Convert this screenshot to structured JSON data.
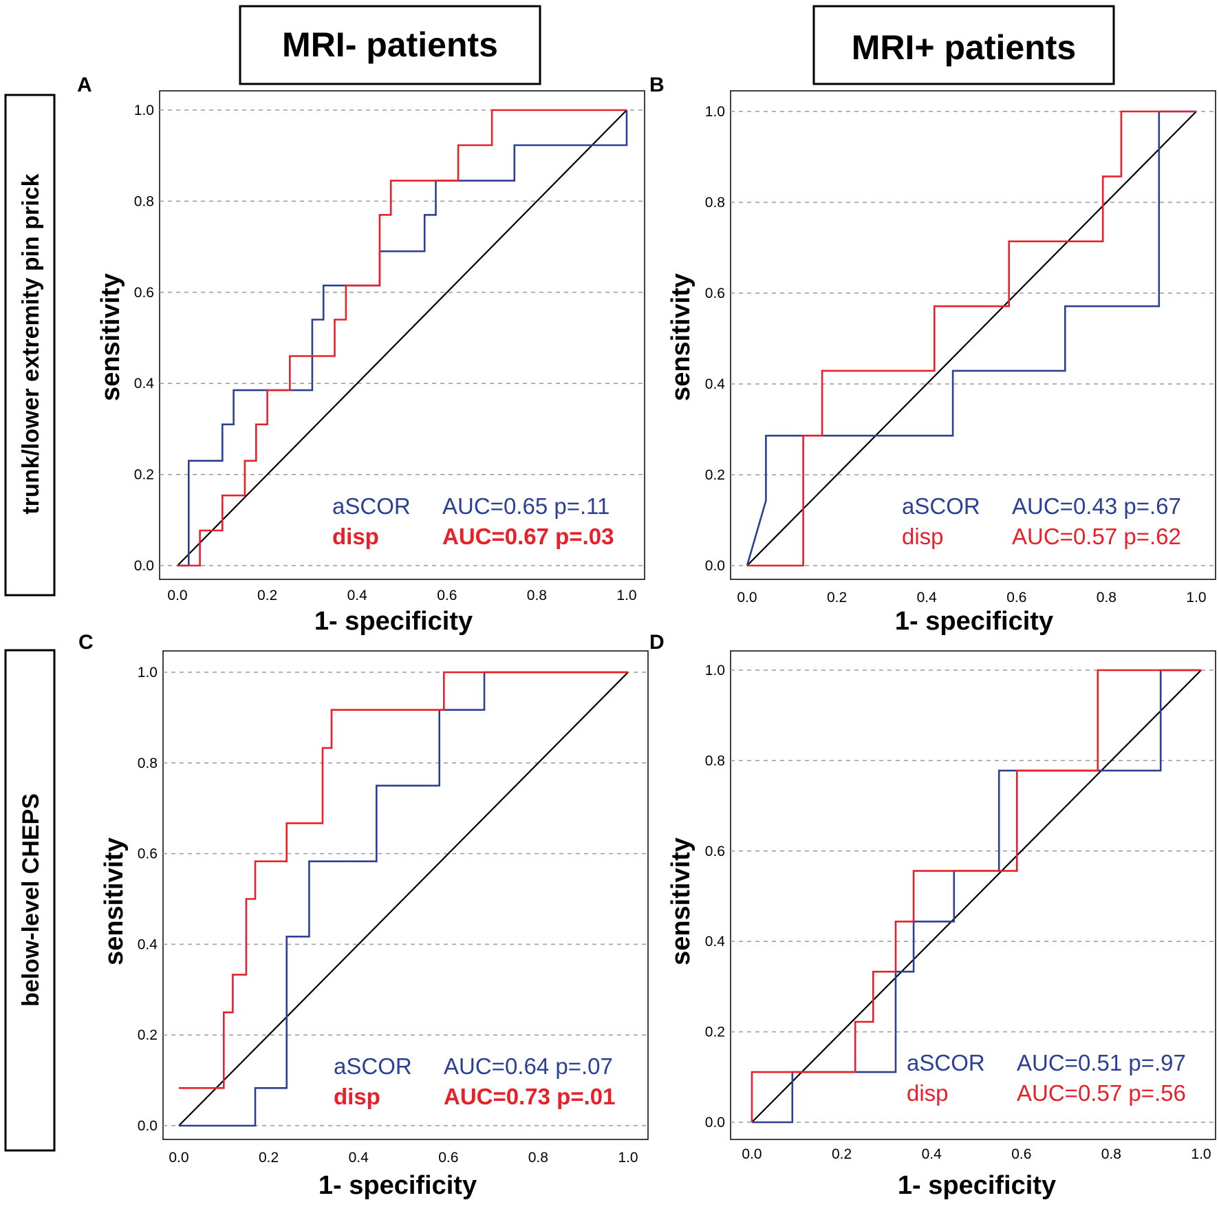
{
  "column_titles": [
    "MRI- patients",
    "MRI+ patients"
  ],
  "row_titles": [
    "trunk/lower extremity pin prick",
    "below-level CHEPS"
  ],
  "colors": {
    "aSCOR": "#2b3f95",
    "disp": "#e8202a",
    "reference": "#000000",
    "grid": "#9a9a9a"
  },
  "chart_data": [
    {
      "panel": "A",
      "type": "line",
      "xlabel": "1- specificity",
      "ylabel": "sensitivity",
      "xlim": [
        0,
        1
      ],
      "ylim": [
        0,
        1
      ],
      "xticks": [
        "0.0",
        "0.2",
        "0.4",
        "0.6",
        "0.8",
        "1.0"
      ],
      "yticks": [
        "0.0",
        "0.2",
        "0.4",
        "0.6",
        "0.8",
        "1.0"
      ],
      "grid": "horizontal dashed",
      "series": [
        {
          "name": "aSCOR",
          "auc_text": "AUC=0.65 p=.11",
          "bold": false,
          "x": [
            0,
            0.025,
            0.025,
            0.1,
            0.1,
            0.125,
            0.125,
            0.3,
            0.3,
            0.325,
            0.325,
            0.45,
            0.45,
            0.55,
            0.55,
            0.575,
            0.575,
            0.75,
            0.75,
            1.0,
            1.0
          ],
          "y": [
            0,
            0,
            0.23,
            0.23,
            0.31,
            0.31,
            0.385,
            0.385,
            0.54,
            0.54,
            0.615,
            0.615,
            0.69,
            0.69,
            0.77,
            0.77,
            0.845,
            0.845,
            0.923,
            0.923,
            1.0
          ]
        },
        {
          "name": "disp",
          "auc_text": "AUC=0.67 p=.03",
          "bold": true,
          "x": [
            0,
            0.05,
            0.05,
            0.1,
            0.1,
            0.15,
            0.15,
            0.175,
            0.175,
            0.2,
            0.2,
            0.25,
            0.25,
            0.35,
            0.35,
            0.375,
            0.375,
            0.45,
            0.45,
            0.475,
            0.475,
            0.625,
            0.625,
            0.7,
            0.7,
            1.0
          ],
          "y": [
            0,
            0,
            0.077,
            0.077,
            0.154,
            0.154,
            0.23,
            0.23,
            0.31,
            0.31,
            0.385,
            0.385,
            0.46,
            0.46,
            0.54,
            0.54,
            0.615,
            0.615,
            0.77,
            0.77,
            0.845,
            0.845,
            0.923,
            0.923,
            1.0,
            1.0
          ]
        }
      ]
    },
    {
      "panel": "B",
      "type": "line",
      "xlabel": "1- specificity",
      "ylabel": "sensitivity",
      "xlim": [
        0,
        1
      ],
      "ylim": [
        0,
        1
      ],
      "xticks": [
        "0.0",
        "0.2",
        "0.4",
        "0.6",
        "0.8",
        "1.0"
      ],
      "yticks": [
        "0.0",
        "0.2",
        "0.4",
        "0.6",
        "0.8",
        "1.0"
      ],
      "grid": "horizontal dashed",
      "series": [
        {
          "name": "aSCOR",
          "auc_text": "AUC=0.43 p=.67",
          "bold": false,
          "x": [
            0,
            0.042,
            0.042,
            0.458,
            0.458,
            0.708,
            0.708,
            0.917,
            0.917,
            1.0
          ],
          "y": [
            0,
            0.143,
            0.286,
            0.286,
            0.429,
            0.429,
            0.571,
            0.571,
            1.0,
            1.0
          ]
        },
        {
          "name": "disp",
          "auc_text": "AUC=0.57 p=.62",
          "bold": false,
          "x": [
            0,
            0.125,
            0.125,
            0.167,
            0.167,
            0.417,
            0.417,
            0.583,
            0.583,
            0.792,
            0.792,
            0.833,
            0.833,
            1.0
          ],
          "y": [
            0,
            0,
            0.286,
            0.286,
            0.429,
            0.429,
            0.571,
            0.571,
            0.714,
            0.714,
            0.857,
            0.857,
            1.0,
            1.0
          ]
        }
      ]
    },
    {
      "panel": "C",
      "type": "line",
      "xlabel": "1- specificity",
      "ylabel": "sensitivity",
      "xlim": [
        0,
        1
      ],
      "ylim": [
        0,
        1
      ],
      "xticks": [
        "0.0",
        "0.2",
        "0.4",
        "0.6",
        "0.8",
        "1.0"
      ],
      "yticks": [
        "0.0",
        "0.2",
        "0.4",
        "0.6",
        "0.8",
        "1.0"
      ],
      "grid": "horizontal dashed",
      "series": [
        {
          "name": "aSCOR",
          "auc_text": "AUC=0.64 p=.07",
          "bold": false,
          "x": [
            0,
            0.17,
            0.17,
            0.24,
            0.24,
            0.29,
            0.29,
            0.44,
            0.44,
            0.58,
            0.58,
            0.68,
            0.68,
            1.0
          ],
          "y": [
            0,
            0,
            0.083,
            0.083,
            0.417,
            0.417,
            0.583,
            0.583,
            0.75,
            0.75,
            0.917,
            0.917,
            1.0,
            1.0
          ]
        },
        {
          "name": "disp",
          "auc_text": "AUC=0.73 p=.01",
          "bold": true,
          "x": [
            0,
            0.1,
            0.1,
            0.12,
            0.12,
            0.15,
            0.15,
            0.17,
            0.17,
            0.24,
            0.24,
            0.32,
            0.32,
            0.34,
            0.34,
            0.59,
            0.59,
            0.88,
            0.88,
            1.0
          ],
          "y": [
            0.083,
            0.083,
            0.25,
            0.25,
            0.333,
            0.333,
            0.5,
            0.5,
            0.583,
            0.583,
            0.667,
            0.667,
            0.833,
            0.833,
            0.917,
            0.917,
            1.0,
            1.0,
            1.0,
            1.0
          ]
        }
      ]
    },
    {
      "panel": "D",
      "type": "line",
      "xlabel": "1- specificity",
      "ylabel": "sensitivity",
      "xlim": [
        0,
        1
      ],
      "ylim": [
        0,
        1
      ],
      "xticks": [
        "0.0",
        "0.2",
        "0.4",
        "0.6",
        "0.8",
        "1.0"
      ],
      "yticks": [
        "0.0",
        "0.2",
        "0.4",
        "0.6",
        "0.8",
        "1.0"
      ],
      "grid": "horizontal dashed",
      "series": [
        {
          "name": "aSCOR",
          "auc_text": "AUC=0.51 p=.97",
          "bold": false,
          "x": [
            0,
            0.09,
            0.09,
            0.32,
            0.32,
            0.36,
            0.36,
            0.45,
            0.45,
            0.55,
            0.55,
            0.59,
            0.59,
            0.91,
            0.91,
            1.0
          ],
          "y": [
            0,
            0,
            0.111,
            0.111,
            0.333,
            0.333,
            0.444,
            0.444,
            0.556,
            0.556,
            0.778,
            0.778,
            0.778,
            0.778,
            1.0,
            1.0
          ]
        },
        {
          "name": "disp",
          "auc_text": "AUC=0.57 p=.56",
          "bold": false,
          "x": [
            0,
            0,
            0.23,
            0.23,
            0.27,
            0.27,
            0.32,
            0.32,
            0.36,
            0.36,
            0.59,
            0.59,
            0.77,
            0.77,
            1.0
          ],
          "y": [
            0,
            0.111,
            0.111,
            0.222,
            0.222,
            0.333,
            0.333,
            0.444,
            0.444,
            0.556,
            0.556,
            0.778,
            0.778,
            1.0,
            1.0
          ]
        }
      ]
    }
  ]
}
